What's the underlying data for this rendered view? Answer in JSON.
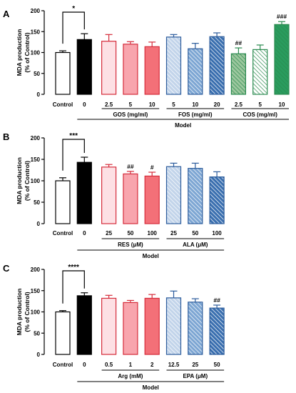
{
  "figure": {
    "panels": [
      {
        "letter": "A",
        "ylabel_line1": "MDA production",
        "ylabel_line2": "(% of Control)",
        "model_label": "Model"
      },
      {
        "letter": "B",
        "ylabel_line1": "MDA production",
        "ylabel_line2": "(% of Control)",
        "model_label": "Model"
      },
      {
        "letter": "C",
        "ylabel_line1": "MDA production",
        "ylabel_line2": "(% of Control)",
        "model_label": "Model"
      }
    ]
  },
  "chart_data": [
    {
      "type": "bar",
      "panel": "A",
      "ylim": [
        0,
        200
      ],
      "yticks": [
        0,
        50,
        100,
        150,
        200
      ],
      "ylabel": "MDA production (% of Control)",
      "grid": false,
      "categories": [
        "Control",
        "0",
        "2.5",
        "5",
        "10",
        "5",
        "10",
        "20",
        "2.5",
        "5",
        "10"
      ],
      "values": [
        100,
        131,
        127,
        120,
        114,
        137,
        109,
        138,
        97,
        107,
        167
      ],
      "errors": [
        4,
        14,
        16,
        6,
        11,
        6,
        13,
        9,
        14,
        11,
        7
      ],
      "fills": [
        "#ffffff",
        "#000000",
        "#fde0e4",
        "#f8a5ad",
        "#f37078",
        "#c2d4ea",
        "#7da6d3",
        "#3a6faf",
        "#9cc79e",
        "#ffffff",
        "#2a9c5e"
      ],
      "edges": [
        "#000000",
        "#000000",
        "#d52b3a",
        "#d52b3a",
        "#d52b3a",
        "#2c5c9c",
        "#2c5c9c",
        "#2c5c9c",
        "#2a8a4f",
        "#2a8a4f",
        "#2a8a4f"
      ],
      "hatched": [
        false,
        false,
        false,
        false,
        false,
        true,
        true,
        true,
        true,
        true,
        true
      ],
      "groups": [
        {
          "label": "GOS (mg/ml)",
          "bars": [
            2,
            4
          ]
        },
        {
          "label": "FOS (mg/ml)",
          "bars": [
            5,
            7
          ]
        },
        {
          "label": "COS (mg/ml)",
          "bars": [
            8,
            10
          ]
        }
      ],
      "annotations": [
        {
          "bar": 8,
          "text": "##"
        },
        {
          "bar": 10,
          "text": "###"
        }
      ],
      "comparison": {
        "from": 0,
        "to": 1,
        "text": "*"
      }
    },
    {
      "type": "bar",
      "panel": "B",
      "ylim": [
        0,
        200
      ],
      "yticks": [
        0,
        50,
        100,
        150,
        200
      ],
      "ylabel": "MDA production (% of Control)",
      "grid": false,
      "categories": [
        "Control",
        "0",
        "25",
        "50",
        "100",
        "25",
        "50",
        "100"
      ],
      "values": [
        100,
        143,
        132,
        116,
        111,
        133,
        129,
        109
      ],
      "errors": [
        7,
        12,
        6,
        6,
        9,
        8,
        12,
        12
      ],
      "fills": [
        "#ffffff",
        "#000000",
        "#fde0e4",
        "#f8a5ad",
        "#f37078",
        "#c2d4ea",
        "#7da6d3",
        "#3a6faf"
      ],
      "edges": [
        "#000000",
        "#000000",
        "#d52b3a",
        "#d52b3a",
        "#d52b3a",
        "#2c5c9c",
        "#2c5c9c",
        "#2c5c9c"
      ],
      "hatched": [
        false,
        false,
        false,
        false,
        false,
        true,
        true,
        true
      ],
      "groups": [
        {
          "label": "RES (μM)",
          "bars": [
            2,
            4
          ]
        },
        {
          "label": "ALA (μM)",
          "bars": [
            5,
            7
          ]
        }
      ],
      "annotations": [
        {
          "bar": 3,
          "text": "##"
        },
        {
          "bar": 4,
          "text": "#"
        }
      ],
      "comparison": {
        "from": 0,
        "to": 1,
        "text": "***"
      }
    },
    {
      "type": "bar",
      "panel": "C",
      "ylim": [
        0,
        200
      ],
      "yticks": [
        0,
        50,
        100,
        150,
        200
      ],
      "ylabel": "MDA production (% of Control)",
      "grid": false,
      "categories": [
        "Control",
        "0",
        "0.5",
        "1",
        "2",
        "12.5",
        "25",
        "50"
      ],
      "values": [
        100,
        138,
        132,
        122,
        132,
        133,
        123,
        109
      ],
      "errors": [
        3,
        7,
        7,
        5,
        9,
        16,
        8,
        7
      ],
      "fills": [
        "#ffffff",
        "#000000",
        "#fde0e4",
        "#f8a5ad",
        "#f37078",
        "#c2d4ea",
        "#7da6d3",
        "#3a6faf"
      ],
      "edges": [
        "#000000",
        "#000000",
        "#d52b3a",
        "#d52b3a",
        "#d52b3a",
        "#2c5c9c",
        "#2c5c9c",
        "#2c5c9c"
      ],
      "hatched": [
        false,
        false,
        false,
        false,
        false,
        true,
        true,
        true
      ],
      "groups": [
        {
          "label": "Arg (mM)",
          "bars": [
            2,
            4
          ]
        },
        {
          "label": "EPA (μM)",
          "bars": [
            5,
            7
          ]
        }
      ],
      "annotations": [
        {
          "bar": 7,
          "text": "##"
        }
      ],
      "comparison": {
        "from": 0,
        "to": 1,
        "text": "****"
      }
    }
  ]
}
